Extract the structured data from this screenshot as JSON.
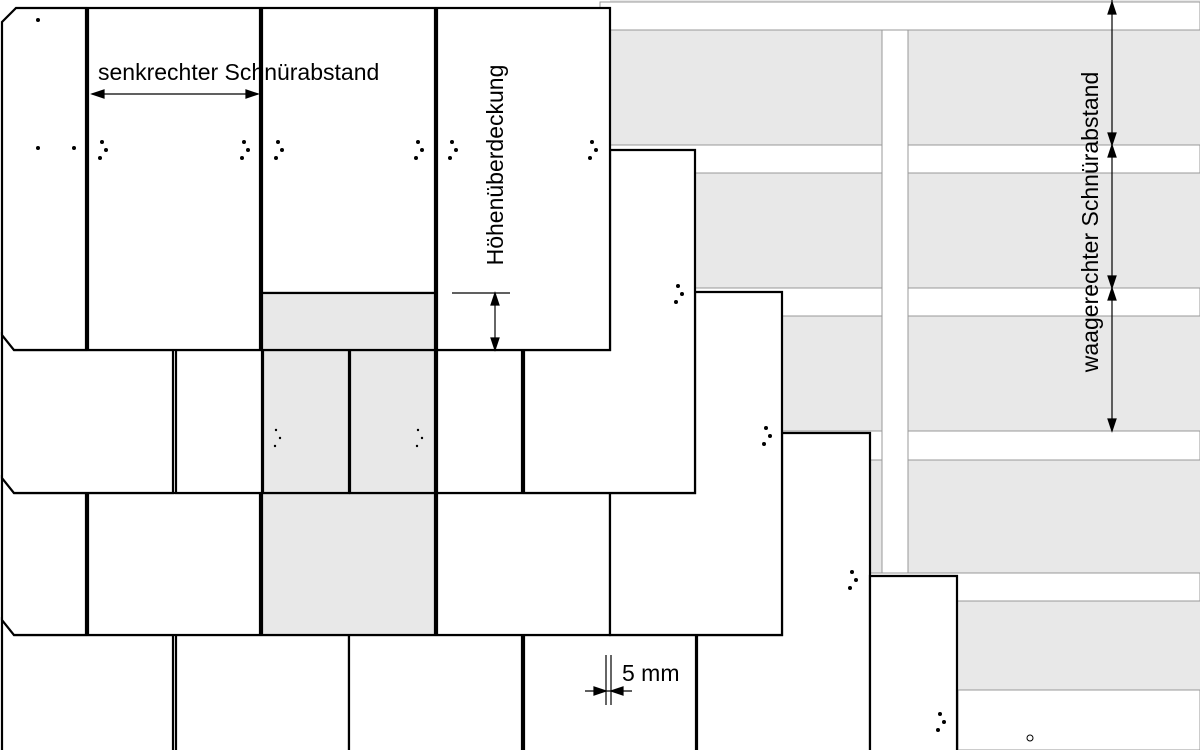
{
  "labels": {
    "vertical_line_spacing": "senkrechter Schnürabstand",
    "height_overlap": "Höhenüberdeckung",
    "horizontal_line_spacing": "waagerechter Schnürabstand",
    "gap": "5 mm"
  }
}
